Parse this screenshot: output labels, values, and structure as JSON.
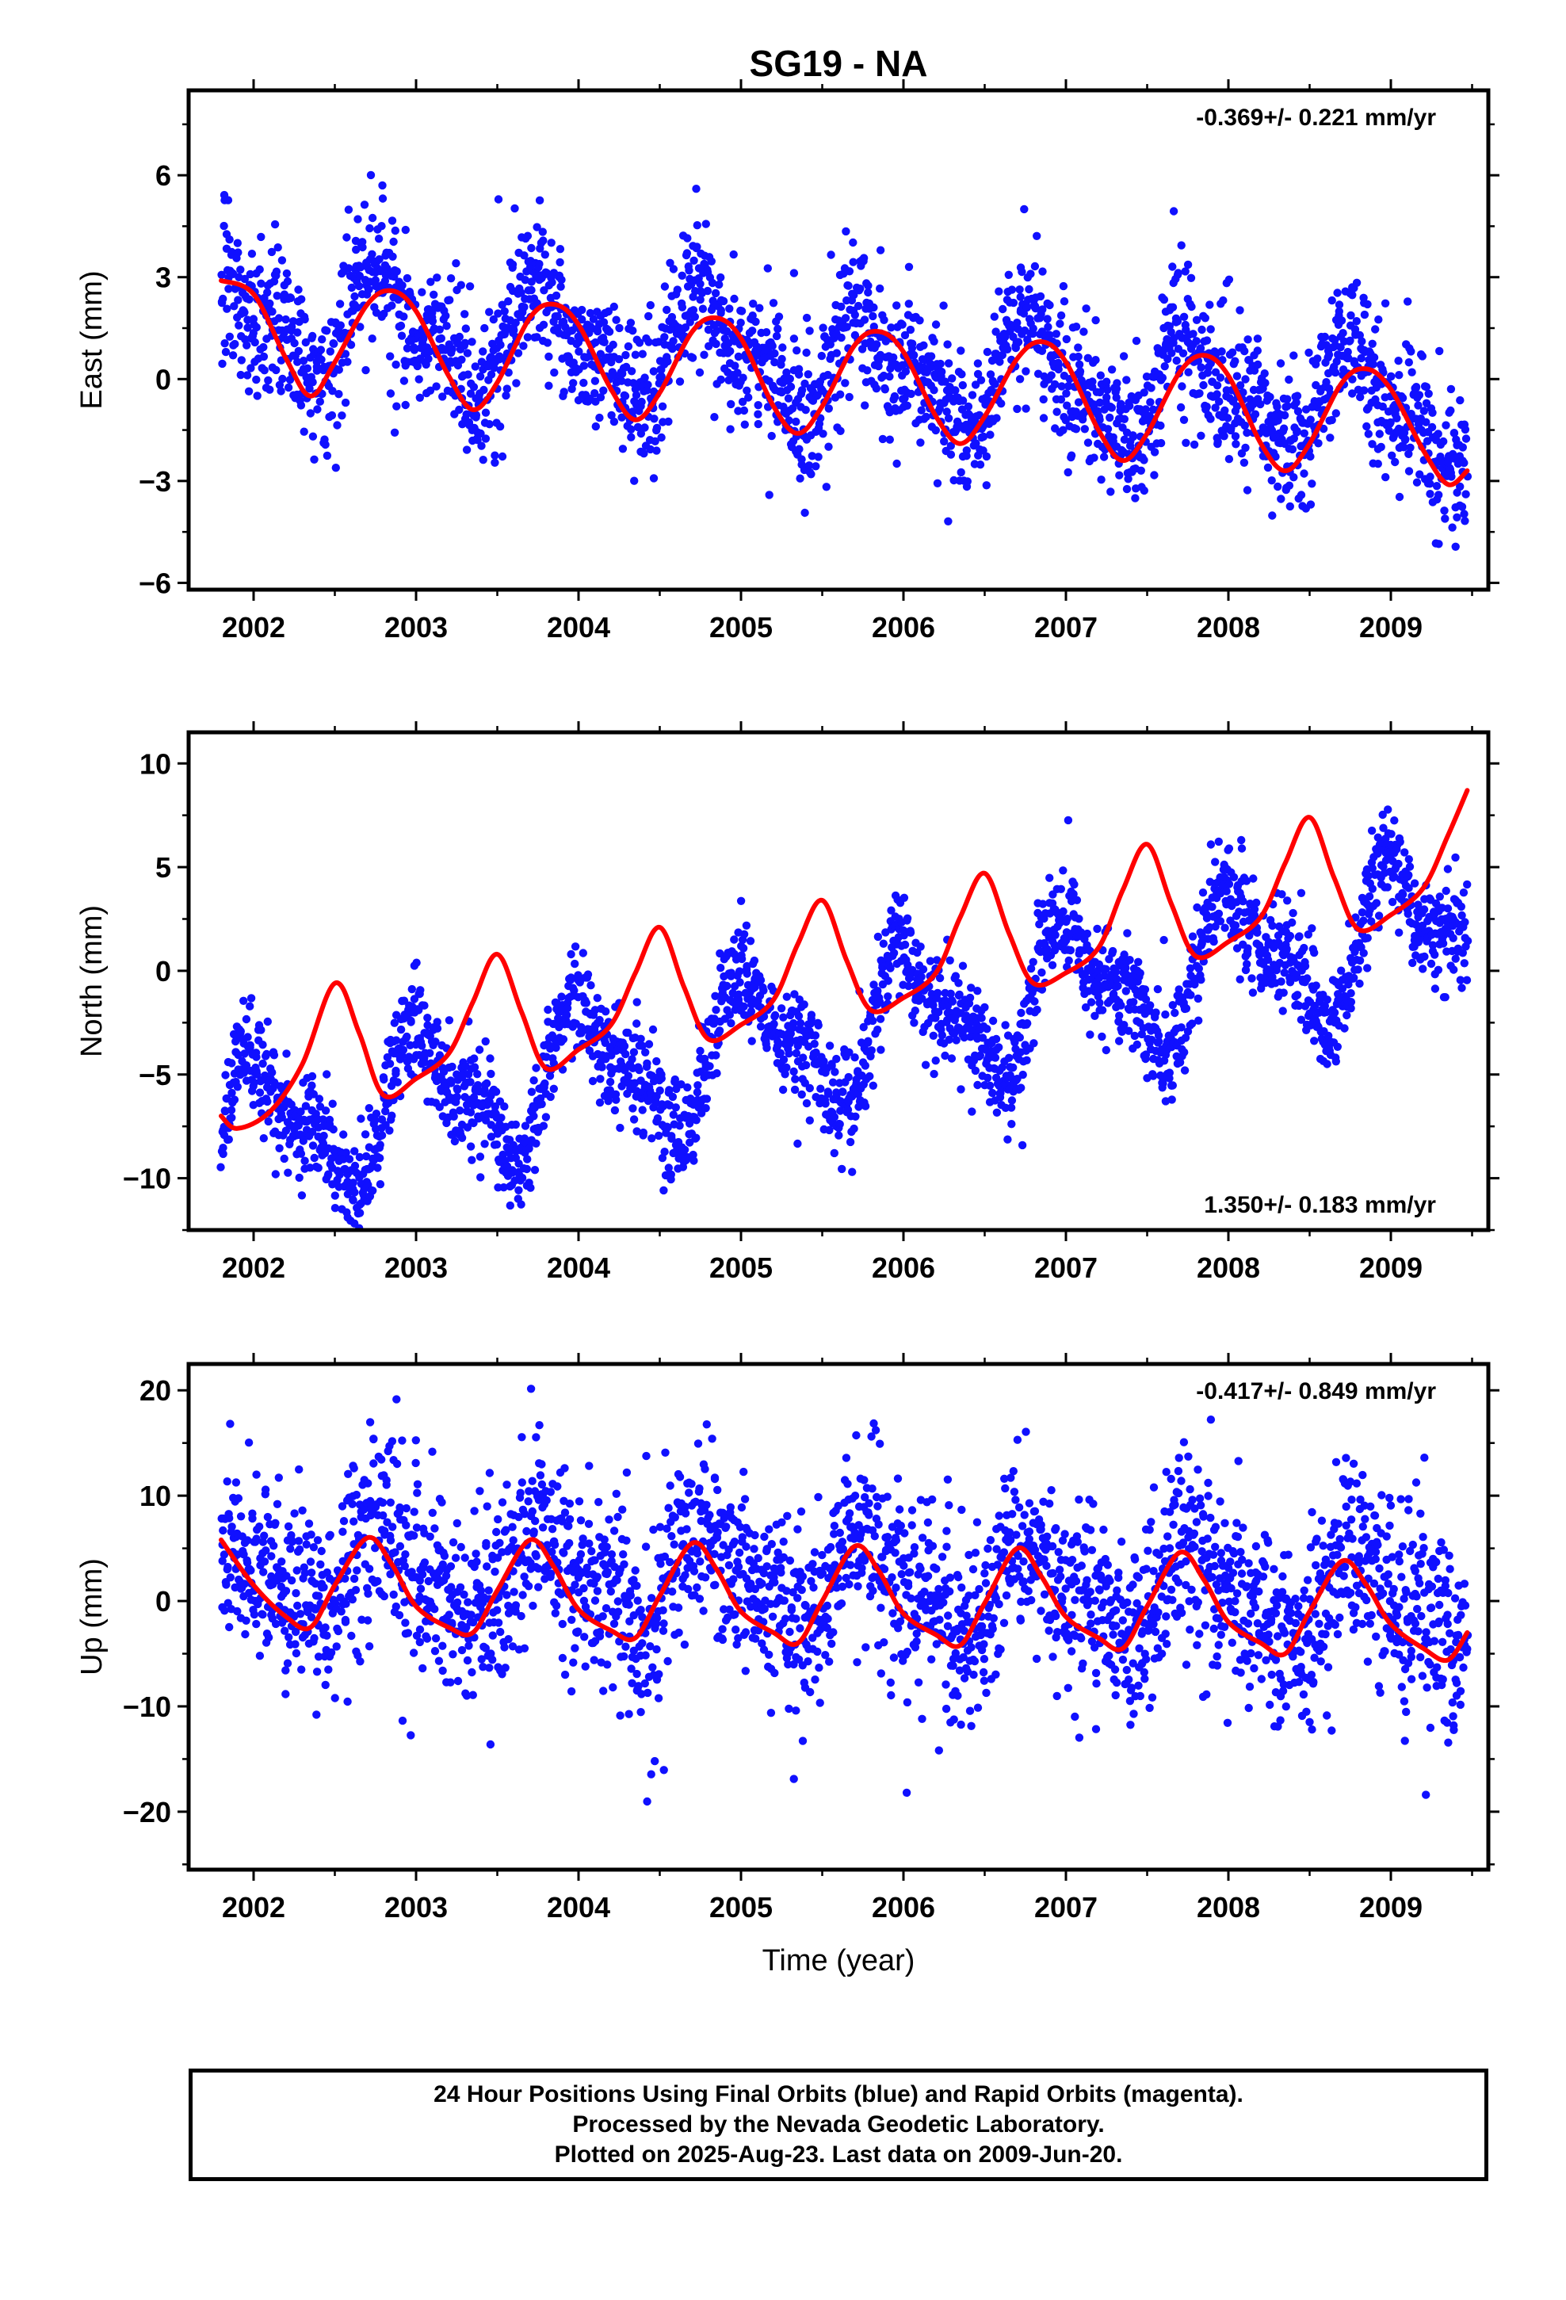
{
  "chart_data": {
    "type": "scatter",
    "title": "SG19 - NA",
    "xlabel": "Time (year)",
    "xlim": [
      2001.6,
      2009.6
    ],
    "x_ticks": [
      "2002",
      "2003",
      "2004",
      "2005",
      "2006",
      "2007",
      "2008",
      "2009"
    ],
    "data_span": [
      2001.8,
      2009.47
    ],
    "point_color": "#1010ff",
    "fit_color": "#ff0000",
    "panels": [
      {
        "component": "east",
        "ylabel": "East (mm)",
        "ylim": [
          -6.2,
          8.5
        ],
        "y_ticks": [
          6,
          3,
          0,
          -3,
          -6
        ],
        "y_tick_labels": [
          "6",
          "3",
          "0",
          "−3",
          "−6"
        ],
        "rate_label": "-0.369+/- 0.221 mm/yr",
        "rate_position": "top-right",
        "fit": {
          "x": [
            2001.8,
            2002.0,
            2002.2,
            2002.35,
            2002.5,
            2002.7,
            2002.85,
            2003.0,
            2003.2,
            2003.35,
            2003.5,
            2003.7,
            2003.85,
            2004.0,
            2004.2,
            2004.35,
            2004.5,
            2004.7,
            2004.85,
            2005.0,
            2005.2,
            2005.35,
            2005.5,
            2005.7,
            2005.85,
            2006.0,
            2006.2,
            2006.35,
            2006.5,
            2006.7,
            2006.85,
            2007.0,
            2007.2,
            2007.35,
            2007.5,
            2007.7,
            2007.85,
            2008.0,
            2008.2,
            2008.35,
            2008.5,
            2008.7,
            2008.85,
            2009.0,
            2009.2,
            2009.35,
            2009.47
          ],
          "y": [
            2.9,
            2.5,
            0.6,
            -0.5,
            0.5,
            2.2,
            2.6,
            2.0,
            0.1,
            -0.9,
            -0.1,
            1.8,
            2.2,
            1.6,
            -0.3,
            -1.2,
            -0.4,
            1.4,
            1.8,
            1.2,
            -0.8,
            -1.6,
            -0.8,
            1.0,
            1.4,
            0.8,
            -1.1,
            -1.9,
            -1.1,
            0.6,
            1.1,
            0.5,
            -1.5,
            -2.4,
            -1.6,
            0.2,
            0.7,
            0.1,
            -1.9,
            -2.7,
            -1.9,
            -0.1,
            0.3,
            -0.3,
            -2.1,
            -3.1,
            -2.7
          ]
        },
        "seasonal": {
          "offset": 0.45,
          "trend": -0.369,
          "amplitude": 1.35,
          "phase": 1.5708,
          "peak_phase": -0.2,
          "scatter": 1.05
        }
      },
      {
        "component": "north",
        "ylabel": "North (mm)",
        "ylim": [
          -12.5,
          11.5
        ],
        "y_ticks": [
          10,
          5,
          0,
          -5,
          -10
        ],
        "y_tick_labels": [
          "10",
          "5",
          "0",
          "−5",
          "−10"
        ],
        "rate_label": "1.350+/- 0.183 mm/yr",
        "rate_position": "bottom-right",
        "fit": {
          "x": [
            2001.8,
            2001.9,
            2002.1,
            2002.3,
            2002.5,
            2002.65,
            2002.8,
            2003.0,
            2003.2,
            2003.35,
            2003.5,
            2003.65,
            2003.8,
            2004.0,
            2004.2,
            2004.35,
            2004.5,
            2004.65,
            2004.8,
            2005.0,
            2005.2,
            2005.35,
            2005.5,
            2005.65,
            2005.8,
            2006.0,
            2006.2,
            2006.35,
            2006.5,
            2006.65,
            2006.8,
            2007.0,
            2007.2,
            2007.35,
            2007.5,
            2007.65,
            2007.8,
            2008.0,
            2008.2,
            2008.35,
            2008.5,
            2008.65,
            2008.8,
            2009.0,
            2009.2,
            2009.35,
            2009.47
          ],
          "y": [
            -7.0,
            -7.6,
            -6.8,
            -4.5,
            -0.6,
            -3.0,
            -6.0,
            -5.2,
            -4.0,
            -1.5,
            0.8,
            -2.0,
            -4.7,
            -3.8,
            -2.6,
            -0.1,
            2.1,
            -0.8,
            -3.3,
            -2.6,
            -1.4,
            1.3,
            3.4,
            0.5,
            -1.9,
            -1.3,
            -0.1,
            2.6,
            4.7,
            1.8,
            -0.6,
            -0.1,
            1.1,
            3.9,
            6.1,
            3.2,
            0.7,
            1.4,
            2.6,
            5.2,
            7.4,
            4.5,
            2.0,
            2.7,
            4.0,
            6.5,
            8.7
          ]
        },
        "seasonal": {
          "offset": -3.0,
          "trend": 1.35,
          "amplitude": 2.9,
          "phase": 0.0,
          "peak_phase": 0.0,
          "scatter": 1.25
        }
      },
      {
        "component": "up",
        "ylabel": "Up (mm)",
        "ylim": [
          -25.5,
          22.5
        ],
        "y_ticks": [
          20,
          10,
          0,
          -10,
          -20
        ],
        "y_tick_labels": [
          "20",
          "10",
          "0",
          "−10",
          "−20"
        ],
        "rate_label": "-0.417+/- 0.849 mm/yr",
        "rate_position": "top-right",
        "fit": {
          "x": [
            2001.8,
            2002.0,
            2002.2,
            2002.35,
            2002.5,
            2002.7,
            2002.85,
            2003.0,
            2003.2,
            2003.35,
            2003.5,
            2003.7,
            2003.85,
            2004.0,
            2004.2,
            2004.35,
            2004.5,
            2004.7,
            2004.85,
            2005.0,
            2005.2,
            2005.35,
            2005.5,
            2005.7,
            2005.85,
            2006.0,
            2006.2,
            2006.35,
            2006.5,
            2006.7,
            2006.85,
            2007.0,
            2007.2,
            2007.35,
            2007.5,
            2007.7,
            2007.85,
            2008.0,
            2008.2,
            2008.35,
            2008.5,
            2008.7,
            2008.85,
            2009.0,
            2009.2,
            2009.35,
            2009.47
          ],
          "y": [
            5.8,
            1.5,
            -1.5,
            -2.5,
            1.5,
            6.0,
            3.5,
            -0.5,
            -2.5,
            -3.0,
            1.0,
            5.8,
            3.2,
            -0.8,
            -2.8,
            -3.5,
            0.5,
            5.5,
            3.0,
            -1.0,
            -3.0,
            -4.0,
            0.0,
            5.2,
            2.8,
            -1.2,
            -3.2,
            -4.2,
            -0.2,
            5.0,
            2.3,
            -1.5,
            -3.5,
            -4.5,
            -0.5,
            4.6,
            2.0,
            -2.0,
            -4.0,
            -5.0,
            -1.0,
            3.8,
            1.5,
            -2.2,
            -4.5,
            -5.6,
            -3.0
          ]
        },
        "seasonal": {
          "offset": 1.4,
          "trend": -0.417,
          "amplitude": 3.6,
          "phase": 1.5708,
          "peak_phase": -0.45,
          "scatter": 4.4
        }
      }
    ]
  },
  "footer": {
    "line1": "24 Hour Positions Using Final Orbits (blue) and Rapid Orbits (magenta).",
    "line2": "Processed by the Nevada Geodetic Laboratory.",
    "line3": "Plotted on 2025-Aug-23. Last data on 2009-Jun-20."
  }
}
